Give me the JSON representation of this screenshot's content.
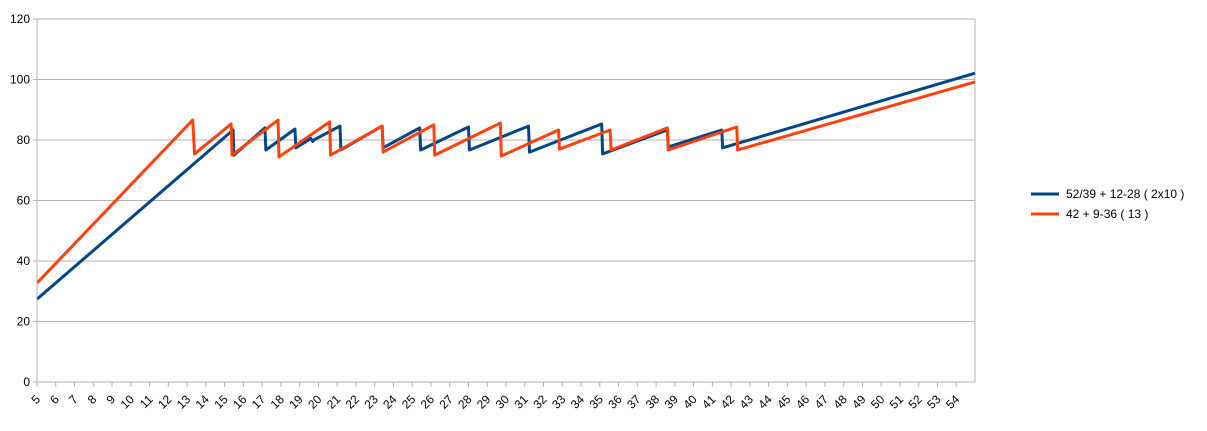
{
  "chart_data": {
    "type": "line",
    "xlim": [
      5,
      55
    ],
    "ylim": [
      0,
      120
    ],
    "yticks": [
      0,
      20,
      40,
      60,
      80,
      100,
      120
    ],
    "xticks": [
      5,
      6,
      7,
      8,
      9,
      10,
      11,
      12,
      13,
      14,
      15,
      16,
      17,
      18,
      19,
      20,
      21,
      22,
      23,
      24,
      25,
      26,
      27,
      28,
      29,
      30,
      31,
      32,
      33,
      34,
      35,
      36,
      37,
      38,
      39,
      40,
      41,
      42,
      43,
      44,
      45,
      46,
      47,
      48,
      49,
      50,
      51,
      52,
      53,
      54
    ],
    "grid": true,
    "legend": "right",
    "series": [
      {
        "name": "52/39 + 12-28 ( 2x10 )",
        "color": "#004586",
        "x": [
          5,
          15.45,
          15.5,
          17.15,
          17.2,
          18.75,
          18.8,
          19.6,
          19.7,
          19.75,
          21.15,
          21.2,
          23.4,
          23.45,
          25.4,
          25.45,
          28,
          28.05,
          31.2,
          31.25,
          35.1,
          35.15,
          38.6,
          38.65,
          41.5,
          41.55,
          55
        ],
        "values": [
          27.4,
          83.3,
          75,
          84,
          76.7,
          83.6,
          77.4,
          80.5,
          79.5,
          80,
          84.6,
          76.7,
          84.6,
          77.4,
          84,
          76.7,
          84.3,
          76.7,
          84.6,
          76,
          85.3,
          75.4,
          83.3,
          77.7,
          83.3,
          77.4,
          102.1
        ]
      },
      {
        "name": "42 + 9-36 ( 13 )",
        "color": "#ff420e",
        "x": [
          5,
          13.3,
          13.4,
          15.35,
          15.4,
          17.85,
          17.9,
          20.6,
          20.65,
          23.4,
          23.45,
          26.15,
          26.2,
          29.7,
          29.75,
          32.8,
          32.85,
          35.55,
          35.6,
          38.6,
          38.65,
          42.3,
          42.35,
          55
        ],
        "values": [
          32.7,
          86.6,
          75.4,
          85.3,
          75,
          86.6,
          74.4,
          86,
          75,
          84.6,
          76,
          85,
          75,
          85.6,
          74.7,
          83.3,
          77,
          83.3,
          76.7,
          84,
          76.7,
          84.3,
          76.7,
          99.2
        ]
      }
    ]
  }
}
